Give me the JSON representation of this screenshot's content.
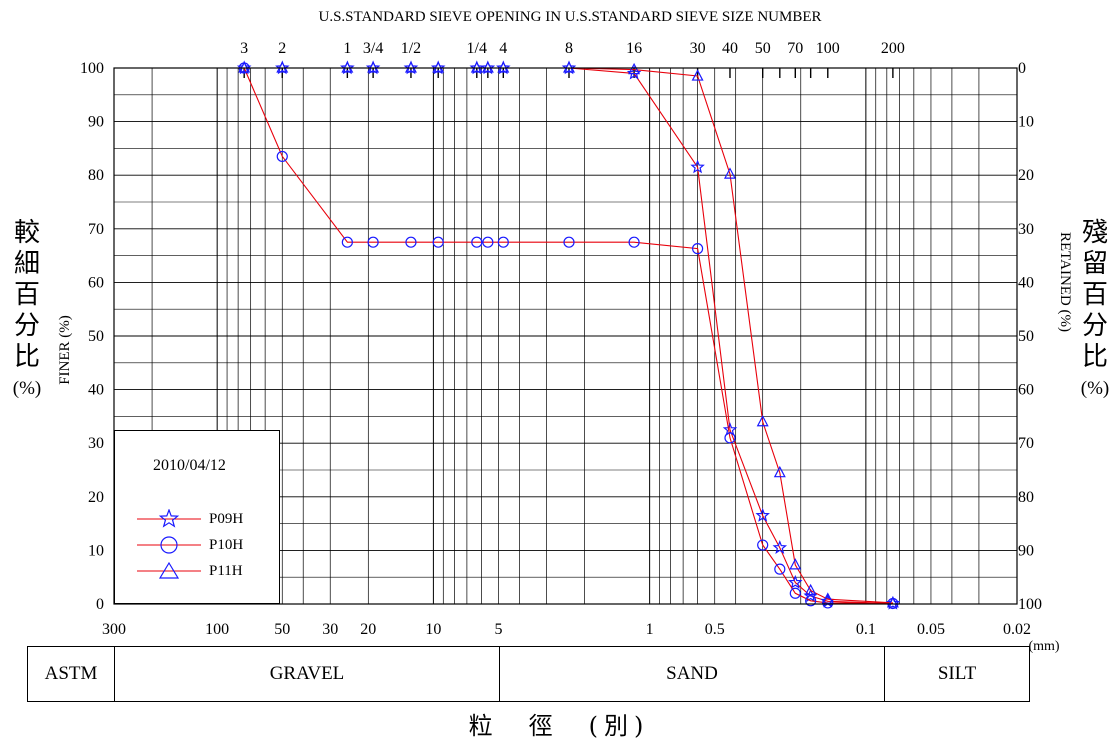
{
  "chart_data": {
    "type": "line",
    "title": "U.S.STANDARD SIEVE OPENING IN U.S.STANDARD SIEVE SIZE NUMBER",
    "x_scale": "log",
    "xlim": [
      300,
      0.02
    ],
    "x_unit": "(mm)",
    "x_ticks": [
      {
        "label": "300",
        "value": 300
      },
      {
        "label": "100",
        "value": 100
      },
      {
        "label": "50",
        "value": 50
      },
      {
        "label": "30",
        "value": 30
      },
      {
        "label": "20",
        "value": 20
      },
      {
        "label": "10",
        "value": 10
      },
      {
        "label": "5",
        "value": 5
      },
      {
        "label": "1",
        "value": 1
      },
      {
        "label": "0.5",
        "value": 0.5
      },
      {
        "label": "0.1",
        "value": 0.1
      },
      {
        "label": "0.05",
        "value": 0.05
      },
      {
        "label": "0.02",
        "value": 0.02
      }
    ],
    "sieve_ticks": [
      {
        "label": "3",
        "value": 75
      },
      {
        "label": "2",
        "value": 50
      },
      {
        "label": "1",
        "value": 25
      },
      {
        "label": "3/4",
        "value": 19
      },
      {
        "label": "1/2",
        "value": 12.7
      },
      {
        "label": "",
        "value": 9.5
      },
      {
        "label": "1/4",
        "value": 6.3
      },
      {
        "label": "",
        "value": 5.6
      },
      {
        "label": "4",
        "value": 4.75
      },
      {
        "label": "8",
        "value": 2.36
      },
      {
        "label": "16",
        "value": 1.18
      },
      {
        "label": "30",
        "value": 0.6
      },
      {
        "label": "40",
        "value": 0.425
      },
      {
        "label": "50",
        "value": 0.3
      },
      {
        "label": "",
        "value": 0.25
      },
      {
        "label": "70",
        "value": 0.212
      },
      {
        "label": "",
        "value": 0.18
      },
      {
        "label": "100",
        "value": 0.15
      },
      {
        "label": "200",
        "value": 0.075
      }
    ],
    "ylim": [
      0,
      100
    ],
    "y_ticks": [
      0,
      10,
      20,
      30,
      40,
      50,
      60,
      70,
      80,
      90,
      100
    ],
    "y2_ticks": [
      100,
      90,
      80,
      70,
      60,
      50,
      40,
      30,
      20,
      10,
      0
    ],
    "ylabel_left": {
      "zh": [
        "較",
        "細",
        "百",
        "分",
        "比"
      ],
      "en": "FINER (%)",
      "pct": "(%)"
    },
    "ylabel_right": {
      "zh": [
        "殘",
        "留",
        "百",
        "分",
        "比"
      ],
      "en": "RETAINED (%)",
      "pct": "(%)"
    },
    "xlabel": "粒　徑　(別)",
    "grid": true,
    "legend_position": "bottom-left",
    "legend_title": "2010/04/12",
    "line_color": "#e8000b",
    "marker_color": "#1a1aff",
    "series": [
      {
        "name": "P09H",
        "marker": "star",
        "points": [
          [
            75,
            100
          ],
          [
            50,
            100
          ],
          [
            25,
            100
          ],
          [
            19,
            100
          ],
          [
            12.7,
            100
          ],
          [
            9.5,
            100
          ],
          [
            6.3,
            100
          ],
          [
            5.6,
            100
          ],
          [
            4.75,
            100
          ],
          [
            2.36,
            100
          ],
          [
            1.18,
            99
          ],
          [
            0.6,
            81.5
          ],
          [
            0.425,
            32.5
          ],
          [
            0.3,
            16.5
          ],
          [
            0.25,
            10.5
          ],
          [
            0.212,
            4
          ],
          [
            0.18,
            1.5
          ],
          [
            0.15,
            0.5
          ],
          [
            0.075,
            0.1
          ]
        ]
      },
      {
        "name": "P10H",
        "marker": "circle",
        "points": [
          [
            75,
            100
          ],
          [
            50,
            83.5
          ],
          [
            25,
            67.5
          ],
          [
            19,
            67.5
          ],
          [
            12.7,
            67.5
          ],
          [
            9.5,
            67.5
          ],
          [
            6.3,
            67.5
          ],
          [
            5.6,
            67.5
          ],
          [
            4.75,
            67.5
          ],
          [
            2.36,
            67.5
          ],
          [
            1.18,
            67.5
          ],
          [
            0.6,
            66.3
          ],
          [
            0.425,
            31
          ],
          [
            0.3,
            11
          ],
          [
            0.25,
            6.5
          ],
          [
            0.212,
            2
          ],
          [
            0.18,
            0.6
          ],
          [
            0.15,
            0.2
          ],
          [
            0.075,
            0.1
          ]
        ]
      },
      {
        "name": "P11H",
        "marker": "triangle",
        "points": [
          [
            75,
            100
          ],
          [
            50,
            100
          ],
          [
            25,
            100
          ],
          [
            19,
            100
          ],
          [
            12.7,
            100
          ],
          [
            9.5,
            100
          ],
          [
            6.3,
            100
          ],
          [
            5.6,
            100
          ],
          [
            4.75,
            100
          ],
          [
            2.36,
            100
          ],
          [
            1.18,
            99.7
          ],
          [
            0.6,
            98.5
          ],
          [
            0.425,
            80.2
          ],
          [
            0.3,
            34
          ],
          [
            0.25,
            24.5
          ],
          [
            0.212,
            7.3
          ],
          [
            0.18,
            2.5
          ],
          [
            0.15,
            0.9
          ],
          [
            0.075,
            0.2
          ]
        ]
      }
    ],
    "soil_classes": [
      {
        "label": "ASTM",
        "from": null,
        "to": null
      },
      {
        "label": "GRAVEL",
        "from": 300,
        "to": 4.75
      },
      {
        "label": "SAND",
        "from": 4.75,
        "to": 0.075
      },
      {
        "label": "SILT",
        "from": 0.075,
        "to": 0.02
      }
    ]
  }
}
